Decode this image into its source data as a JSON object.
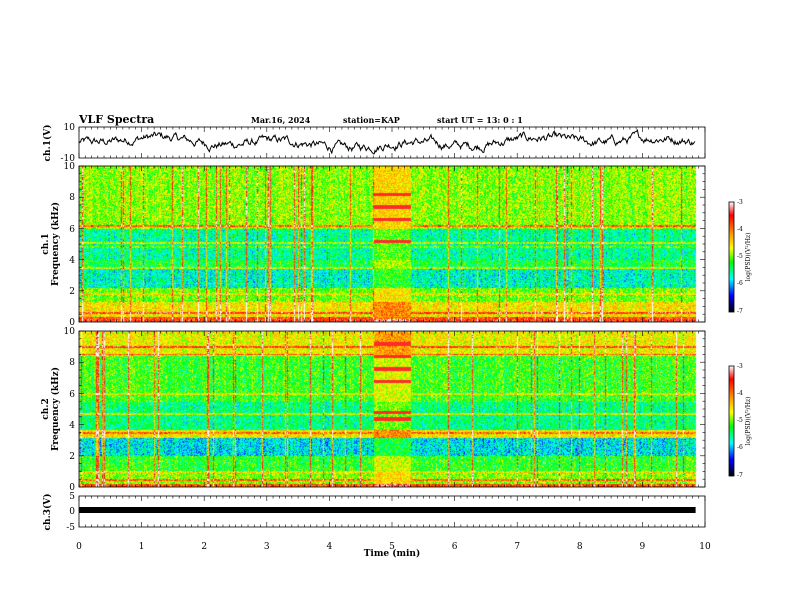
{
  "header": {
    "title": "VLF Spectra",
    "date": "Mar.16, 2024",
    "station": "station=KAP",
    "start_ut": "start  UT  =   13: 0  : 1"
  },
  "chart_data": [
    {
      "type": "line",
      "name": "channel-1-waveform",
      "ylabel": "ch.1(V)",
      "ylim": [
        -10,
        10
      ],
      "yticks": [
        "10",
        "-10"
      ],
      "xlim": [
        0,
        10
      ]
    },
    {
      "type": "heatmap",
      "name": "channel-1-spectrogram",
      "ylabel_line1": "ch.1",
      "ylabel_line2": "Frequency (kHz)",
      "ylim": [
        0,
        10
      ],
      "yticks": [
        "0",
        "2",
        "4",
        "6",
        "8",
        "10"
      ],
      "xlim": [
        0,
        10
      ],
      "data_end_min": 9.85,
      "burst_window_min": [
        4.7,
        5.3
      ],
      "colorbar": {
        "label": "log(PSD)(V²/Hz)",
        "range": [
          -7,
          -3
        ],
        "ticks": [
          "-3",
          "-4",
          "-5",
          "-6",
          "-7"
        ]
      }
    },
    {
      "type": "heatmap",
      "name": "channel-2-spectrogram",
      "ylabel_line1": "ch.2",
      "ylabel_line2": "Frequency (kHz)",
      "ylim": [
        0,
        10
      ],
      "yticks": [
        "0",
        "2",
        "4",
        "6",
        "8",
        "10"
      ],
      "xlim": [
        0,
        10
      ],
      "data_end_min": 9.85,
      "burst_window_min": [
        4.7,
        5.3
      ],
      "colorbar": {
        "label": "log(PSD)(V²/Hz)",
        "range": [
          -7,
          -3
        ],
        "ticks": [
          "-3",
          "-4",
          "-5",
          "-6",
          "-7"
        ]
      }
    },
    {
      "type": "line",
      "name": "channel-3-waveform",
      "ylabel": "ch.3(V)",
      "ylim": [
        -5,
        5
      ],
      "yticks": [
        "5",
        "0",
        "-5"
      ],
      "xlim": [
        0,
        10
      ],
      "xlabel": "Time  (min)",
      "xticks": [
        "0",
        "1",
        "2",
        "3",
        "4",
        "5",
        "6",
        "7",
        "8",
        "9",
        "10"
      ]
    }
  ]
}
